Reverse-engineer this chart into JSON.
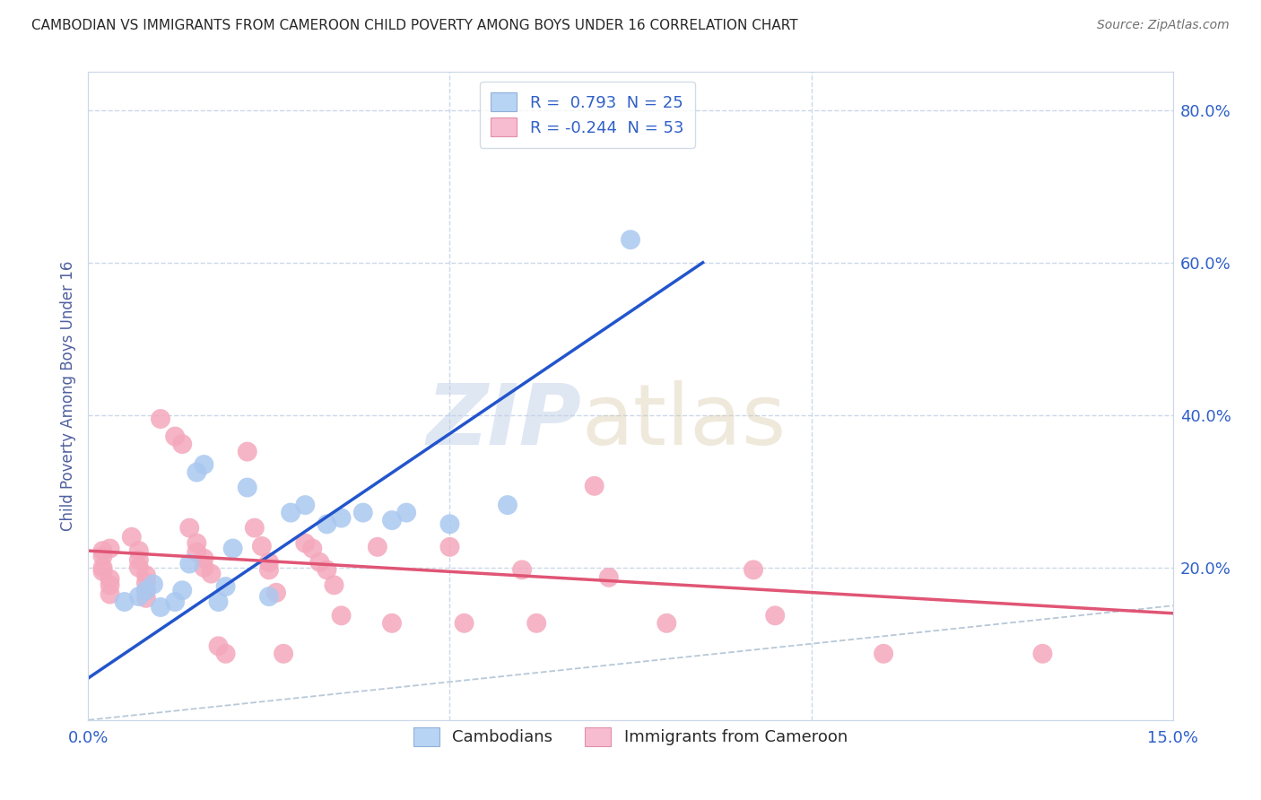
{
  "title": "CAMBODIAN VS IMMIGRANTS FROM CAMEROON CHILD POVERTY AMONG BOYS UNDER 16 CORRELATION CHART",
  "source": "Source: ZipAtlas.com",
  "ylabel": "Child Poverty Among Boys Under 16",
  "xlim": [
    0.0,
    0.15
  ],
  "ylim": [
    0.0,
    0.85
  ],
  "xticks": [
    0.0,
    0.05,
    0.1,
    0.15
  ],
  "xticklabels": [
    "0.0%",
    "",
    "",
    "15.0%"
  ],
  "yticks_right": [
    0.2,
    0.4,
    0.6,
    0.8
  ],
  "ytick_labels_right": [
    "20.0%",
    "40.0%",
    "60.0%",
    "80.0%"
  ],
  "watermark_zip": "ZIP",
  "watermark_atlas": "atlas",
  "blue_scatter": [
    [
      0.005,
      0.155
    ],
    [
      0.007,
      0.162
    ],
    [
      0.008,
      0.17
    ],
    [
      0.009,
      0.178
    ],
    [
      0.01,
      0.148
    ],
    [
      0.012,
      0.155
    ],
    [
      0.013,
      0.17
    ],
    [
      0.014,
      0.205
    ],
    [
      0.015,
      0.325
    ],
    [
      0.016,
      0.335
    ],
    [
      0.018,
      0.155
    ],
    [
      0.019,
      0.175
    ],
    [
      0.02,
      0.225
    ],
    [
      0.022,
      0.305
    ],
    [
      0.025,
      0.162
    ],
    [
      0.028,
      0.272
    ],
    [
      0.03,
      0.282
    ],
    [
      0.033,
      0.257
    ],
    [
      0.035,
      0.265
    ],
    [
      0.038,
      0.272
    ],
    [
      0.042,
      0.262
    ],
    [
      0.044,
      0.272
    ],
    [
      0.05,
      0.257
    ],
    [
      0.058,
      0.282
    ],
    [
      0.075,
      0.63
    ]
  ],
  "pink_scatter": [
    [
      0.002,
      0.222
    ],
    [
      0.002,
      0.215
    ],
    [
      0.002,
      0.2
    ],
    [
      0.002,
      0.195
    ],
    [
      0.003,
      0.185
    ],
    [
      0.003,
      0.177
    ],
    [
      0.003,
      0.165
    ],
    [
      0.003,
      0.225
    ],
    [
      0.006,
      0.24
    ],
    [
      0.007,
      0.222
    ],
    [
      0.007,
      0.21
    ],
    [
      0.007,
      0.2
    ],
    [
      0.008,
      0.19
    ],
    [
      0.008,
      0.18
    ],
    [
      0.008,
      0.17
    ],
    [
      0.008,
      0.16
    ],
    [
      0.01,
      0.395
    ],
    [
      0.012,
      0.372
    ],
    [
      0.013,
      0.362
    ],
    [
      0.014,
      0.252
    ],
    [
      0.015,
      0.232
    ],
    [
      0.015,
      0.22
    ],
    [
      0.016,
      0.212
    ],
    [
      0.016,
      0.2
    ],
    [
      0.017,
      0.192
    ],
    [
      0.018,
      0.097
    ],
    [
      0.019,
      0.087
    ],
    [
      0.022,
      0.352
    ],
    [
      0.023,
      0.252
    ],
    [
      0.024,
      0.228
    ],
    [
      0.025,
      0.207
    ],
    [
      0.025,
      0.197
    ],
    [
      0.026,
      0.167
    ],
    [
      0.027,
      0.087
    ],
    [
      0.03,
      0.232
    ],
    [
      0.031,
      0.225
    ],
    [
      0.032,
      0.207
    ],
    [
      0.033,
      0.197
    ],
    [
      0.034,
      0.177
    ],
    [
      0.035,
      0.137
    ],
    [
      0.04,
      0.227
    ],
    [
      0.042,
      0.127
    ],
    [
      0.05,
      0.227
    ],
    [
      0.052,
      0.127
    ],
    [
      0.06,
      0.197
    ],
    [
      0.062,
      0.127
    ],
    [
      0.07,
      0.307
    ],
    [
      0.072,
      0.187
    ],
    [
      0.08,
      0.127
    ],
    [
      0.092,
      0.197
    ],
    [
      0.095,
      0.137
    ],
    [
      0.11,
      0.087
    ],
    [
      0.132,
      0.087
    ]
  ],
  "blue_line": [
    [
      0.0,
      0.055
    ],
    [
      0.085,
      0.6
    ]
  ],
  "pink_line": [
    [
      0.0,
      0.222
    ],
    [
      0.15,
      0.14
    ]
  ],
  "ref_line": [
    [
      0.0,
      0.0
    ],
    [
      0.85,
      0.85
    ]
  ],
  "blue_color": "#aac8f0",
  "pink_color": "#f4a8bc",
  "blue_line_color": "#2255cc",
  "pink_line_color": "#e05575",
  "ref_line_color": "#b8c8d8",
  "background_color": "#ffffff",
  "grid_color": "#ccd8e8",
  "title_color": "#282828",
  "source_color": "#707070",
  "axis_label_color": "#5060a0",
  "tick_color": "#3060c8",
  "legend_border_color": "#c8d4e0",
  "legend_blue_label": "R =  0.793  N = 25",
  "legend_pink_label": "R = -0.244  N = 53",
  "legend_cambodians": "Cambodians",
  "legend_cameroon": "Immigrants from Cameroon"
}
